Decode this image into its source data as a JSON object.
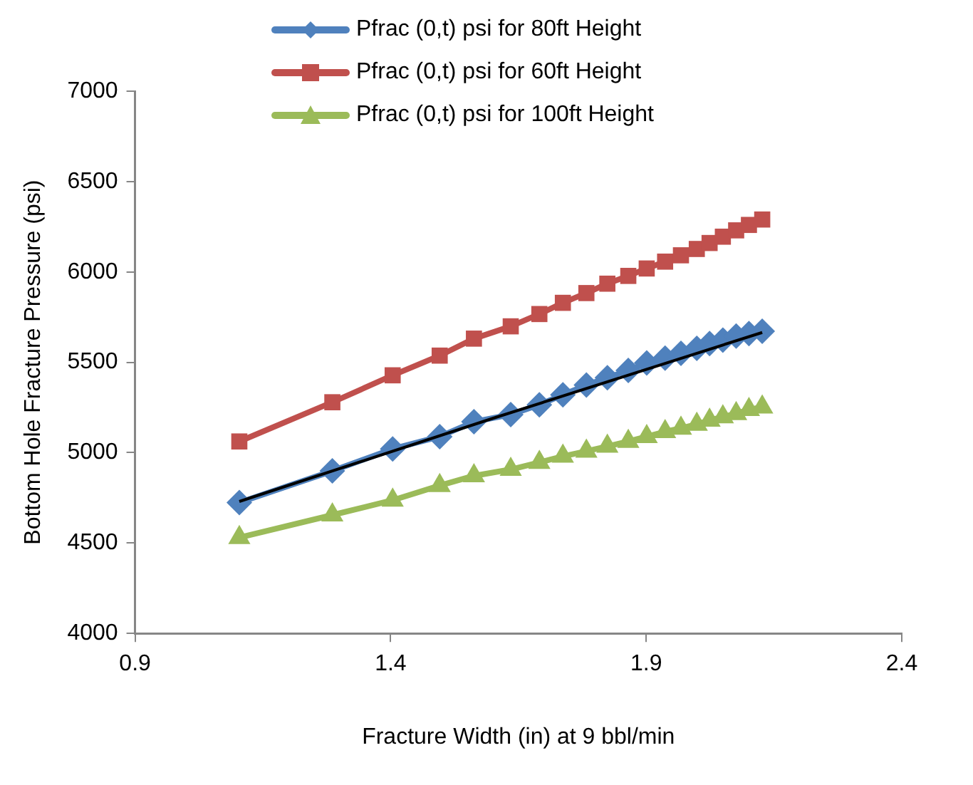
{
  "chart_data": {
    "type": "line",
    "xlabel": "Fracture Width (in) at 9 bbl/min",
    "ylabel": "Bottom Hole Fracture Pressure (psi)",
    "x": [
      1.104,
      1.286,
      1.404,
      1.496,
      1.563,
      1.635,
      1.691,
      1.737,
      1.783,
      1.824,
      1.865,
      1.901,
      1.937,
      1.968,
      1.999,
      2.024,
      2.05,
      2.076,
      2.101,
      2.127
    ],
    "series": [
      {
        "name": "Pfrac (0,t) psi for 80ft Height",
        "color": "#4f81bd",
        "marker": "diamond",
        "values": [
          4724,
          4899,
          5021,
          5089,
          5171,
          5211,
          5265,
          5320,
          5374,
          5415,
          5455,
          5496,
          5523,
          5550,
          5577,
          5604,
          5623,
          5645,
          5659,
          5672
        ]
      },
      {
        "name": "Pfrac (0,t) psi for 60ft Height",
        "color": "#c0504d",
        "marker": "square",
        "values": [
          5062,
          5279,
          5428,
          5537,
          5631,
          5699,
          5767,
          5829,
          5883,
          5935,
          5978,
          6019,
          6057,
          6092,
          6127,
          6160,
          6195,
          6230,
          6260,
          6290
        ]
      },
      {
        "name": "Pfrac (0,t) psi for 100ft Height",
        "color": "#9bbb59",
        "marker": "triangle",
        "values": [
          4530,
          4655,
          4737,
          4818,
          4872,
          4907,
          4946,
          4980,
          5008,
          5035,
          5062,
          5089,
          5116,
          5135,
          5157,
          5179,
          5198,
          5216,
          5238,
          5252
        ]
      },
      {
        "type": "line",
        "color": "#000000",
        "marker": "none",
        "x": [
          1.104,
          1.6,
          2.127
        ],
        "values": [
          4730,
          5190,
          5665
        ]
      }
    ],
    "xlim": [
      0.9,
      2.4
    ],
    "xticks": [
      0.9,
      1.4,
      1.9,
      2.4
    ],
    "ylim": [
      4000,
      7000
    ],
    "yticks": [
      4000,
      4500,
      5000,
      5500,
      6000,
      6500,
      7000
    ],
    "grid": false,
    "legend": "top"
  }
}
